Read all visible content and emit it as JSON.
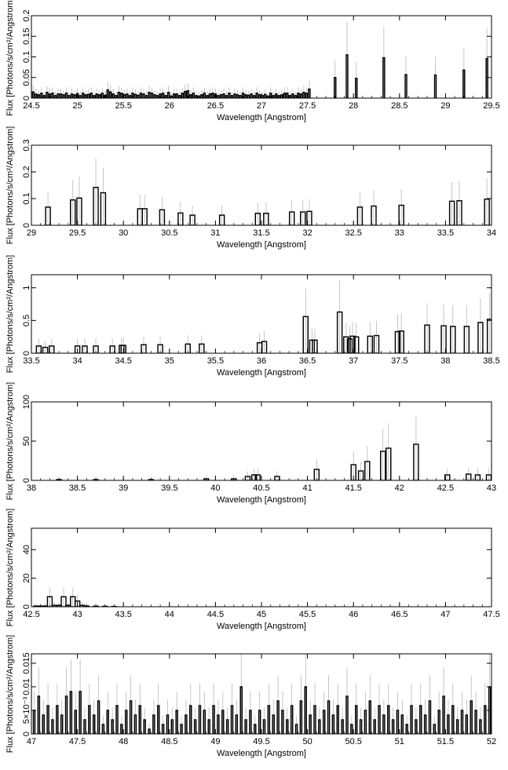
{
  "chart_data": [
    {
      "type": "line",
      "xlabel": "Wavelength [Angstrom]",
      "ylabel": "Flux [Photons/s/cm²/Angstrom]",
      "xlim": [
        24.5,
        29.5
      ],
      "ylim": [
        0,
        0.2
      ],
      "xticks": [
        "24.5",
        "25",
        "25.5",
        "26",
        "26.5",
        "27",
        "27.5",
        "28",
        "28.5",
        "29",
        "29.5"
      ],
      "yticks": [
        "0",
        "0.05",
        "0.1",
        "0.15",
        "0.2"
      ],
      "series": [
        {
          "x": [
            24.52,
            24.55,
            24.58,
            24.61,
            24.64,
            24.67,
            24.7,
            24.73,
            24.76,
            24.79,
            24.82,
            24.85,
            24.88,
            24.91,
            24.94,
            24.97,
            25.0,
            25.03,
            25.06,
            25.09,
            25.12,
            25.15,
            25.18,
            25.21,
            25.24,
            25.27,
            25.3,
            25.33,
            25.36,
            25.39,
            25.42,
            25.45,
            25.48,
            25.51,
            25.54,
            25.57,
            25.6,
            25.63,
            25.66,
            25.69,
            25.72,
            25.75,
            25.78,
            25.81,
            25.84,
            25.87,
            25.9,
            25.93,
            25.96,
            25.99,
            26.02,
            26.05,
            26.08,
            26.11,
            26.14,
            26.17,
            26.2,
            26.23,
            26.26,
            26.29,
            26.32,
            26.35,
            26.38,
            26.41,
            26.44,
            26.47,
            26.5,
            26.53,
            26.56,
            26.59,
            26.62,
            26.65,
            26.68,
            26.71,
            26.74,
            26.77,
            26.8,
            26.83,
            26.86,
            26.89,
            26.92,
            26.95,
            26.98,
            27.01,
            27.04,
            27.07,
            27.1,
            27.13,
            27.16,
            27.19,
            27.22,
            27.25,
            27.28,
            27.31,
            27.34,
            27.37,
            27.4,
            27.43,
            27.46,
            27.49,
            27.52,
            27.8,
            27.93,
            28.03,
            28.33,
            28.57,
            28.89,
            29.2,
            29.45
          ],
          "y": [
            0.015,
            0.01,
            0.008,
            0.012,
            0.006,
            0.014,
            0.01,
            0.012,
            0.006,
            0.01,
            0.01,
            0.008,
            0.012,
            0.006,
            0.01,
            0.008,
            0.011,
            0.006,
            0.012,
            0.008,
            0.009,
            0.012,
            0.006,
            0.01,
            0.008,
            0.012,
            0.007,
            0.02,
            0.015,
            0.01,
            0.006,
            0.014,
            0.012,
            0.008,
            0.01,
            0.006,
            0.012,
            0.009,
            0.007,
            0.012,
            0.01,
            0.006,
            0.014,
            0.012,
            0.008,
            0.006,
            0.01,
            0.012,
            0.006,
            0.014,
            0.005,
            0.01,
            0.01,
            0.006,
            0.012,
            0.016,
            0.018,
            0.008,
            0.012,
            0.006,
            0.005,
            0.008,
            0.012,
            0.006,
            0.01,
            0.012,
            0.01,
            0.006,
            0.008,
            0.01,
            0.006,
            0.012,
            0.006,
            0.01,
            0.008,
            0.006,
            0.012,
            0.008,
            0.007,
            0.01,
            0.006,
            0.012,
            0.008,
            0.006,
            0.009,
            0.005,
            0.012,
            0.006,
            0.01,
            0.006,
            0.008,
            0.012,
            0.012,
            0.006,
            0.01,
            0.006,
            0.012,
            0.01,
            0.014,
            0.012,
            0.022,
            0.05,
            0.105,
            0.048,
            0.098,
            0.057,
            0.056,
            0.068,
            0.096
          ]
        }
      ]
    },
    {
      "type": "line",
      "xlabel": "Wavelength [Angstrom]",
      "ylabel": "Flux [Photons/s/cm²/Angstrom]",
      "xlim": [
        29,
        34
      ],
      "ylim": [
        0,
        0.3
      ],
      "xticks": [
        "29",
        "29.5",
        "30",
        "30.5",
        "31",
        "31.5",
        "32",
        "32.5",
        "33",
        "33.5",
        "34"
      ],
      "yticks": [
        "0",
        "0.1",
        "0.2",
        "0.3"
      ],
      "series": [
        {
          "x": [
            29.18,
            29.45,
            29.52,
            29.7,
            29.78,
            30.18,
            30.23,
            30.42,
            30.62,
            30.75,
            31.07,
            31.46,
            31.55,
            31.83,
            31.95,
            32.02,
            32.57,
            32.72,
            33.02,
            33.57,
            33.65,
            33.95
          ],
          "y": [
            0.068,
            0.095,
            0.102,
            0.142,
            0.122,
            0.062,
            0.062,
            0.058,
            0.046,
            0.038,
            0.038,
            0.045,
            0.045,
            0.05,
            0.05,
            0.052,
            0.068,
            0.072,
            0.075,
            0.09,
            0.092,
            0.098
          ]
        }
      ]
    },
    {
      "type": "line",
      "xlabel": "Wavelength [Angstrom]",
      "ylabel": "Flux [Photons/s/cm²/Angstrom]",
      "xlim": [
        33.5,
        38.5
      ],
      "ylim": [
        0,
        1.2
      ],
      "xticks": [
        "33.5",
        "34",
        "34.5",
        "35",
        "35.5",
        "36",
        "36.5",
        "37",
        "37.5",
        "38",
        "38.5"
      ],
      "yticks": [
        "0",
        "0.5",
        "1"
      ],
      "series": [
        {
          "x": [
            33.58,
            33.65,
            33.72,
            34.0,
            34.08,
            34.2,
            34.38,
            34.48,
            34.5,
            34.72,
            34.9,
            35.2,
            35.35,
            35.98,
            36.03,
            36.48,
            36.55,
            36.58,
            36.85,
            36.92,
            36.96,
            36.99,
            37.03,
            37.18,
            37.25,
            37.48,
            37.52,
            37.8,
            37.98,
            38.08,
            38.23,
            38.38,
            38.48
          ],
          "y": [
            0.11,
            0.09,
            0.11,
            0.11,
            0.11,
            0.11,
            0.11,
            0.12,
            0.12,
            0.13,
            0.13,
            0.14,
            0.14,
            0.16,
            0.18,
            0.56,
            0.2,
            0.2,
            0.63,
            0.25,
            0.22,
            0.26,
            0.25,
            0.26,
            0.27,
            0.33,
            0.34,
            0.43,
            0.42,
            0.41,
            0.41,
            0.47,
            0.52
          ]
        }
      ]
    },
    {
      "type": "line",
      "xlabel": "Wavelength [Angstrom]",
      "ylabel": "Flux [Photons/s/cm²/Angstrom]",
      "xlim": [
        38,
        43
      ],
      "ylim": [
        0,
        100
      ],
      "xticks": [
        "38",
        "38.5",
        "39",
        "39.5",
        "40",
        "40.5",
        "41",
        "41.5",
        "42",
        "42.5",
        "43"
      ],
      "yticks": [
        "0",
        "50",
        "100"
      ],
      "series": [
        {
          "x": [
            38.3,
            38.7,
            39.3,
            39.9,
            40.2,
            40.35,
            40.42,
            40.46,
            40.67,
            41.1,
            41.5,
            41.58,
            41.65,
            41.82,
            41.88,
            42.18,
            42.52,
            42.75,
            42.85,
            42.97
          ],
          "y": [
            1,
            1,
            1,
            2,
            2,
            5,
            7,
            7,
            5,
            14,
            20,
            12,
            24,
            37,
            41,
            46,
            7,
            8,
            7,
            7
          ]
        }
      ]
    },
    {
      "type": "line",
      "xlabel": "Wavelength [Angstrom]",
      "ylabel": "Flux [Photons/s/cm²/Angstrom]",
      "xlim": [
        42.5,
        47.5
      ],
      "ylim": [
        0,
        55
      ],
      "xticks": [
        "42.5",
        "43",
        "43.5",
        "44",
        "44.5",
        "45",
        "45.5",
        "46",
        "46.5",
        "47",
        "47.5"
      ],
      "yticks": [
        "0",
        "20",
        "40"
      ],
      "series": [
        {
          "x": [
            42.55,
            42.6,
            42.65,
            42.7,
            42.75,
            42.8,
            42.85,
            42.9,
            42.95,
            43.0,
            43.05,
            43.1,
            43.2,
            43.3,
            43.4
          ],
          "y": [
            0.5,
            0.5,
            0.5,
            7,
            1,
            1,
            7,
            1,
            7,
            4,
            1,
            0.5,
            0.4,
            0.3,
            0.2
          ]
        }
      ]
    },
    {
      "type": "line",
      "xlabel": "Wavelength [Angstrom]",
      "ylabel": "Flux [Photons/s/cm²/Angstrom]",
      "xlim": [
        47,
        52
      ],
      "ylim": [
        0,
        0.017
      ],
      "xticks": [
        "47",
        "47.5",
        "48",
        "48.5",
        "49",
        "49.5",
        "50",
        "50.5",
        "51",
        "51.5",
        "52"
      ],
      "yticks": [
        "0",
        "5×10⁻³",
        "0.01",
        "0.015"
      ],
      "series": [
        {
          "x": [
            47.03,
            47.08,
            47.13,
            47.18,
            47.23,
            47.28,
            47.33,
            47.38,
            47.43,
            47.48,
            47.53,
            47.58,
            47.63,
            47.68,
            47.73,
            47.78,
            47.83,
            47.88,
            47.93,
            47.98,
            48.03,
            48.08,
            48.13,
            48.18,
            48.23,
            48.28,
            48.33,
            48.38,
            48.43,
            48.48,
            48.53,
            48.58,
            48.63,
            48.68,
            48.73,
            48.78,
            48.83,
            48.88,
            48.93,
            48.98,
            49.03,
            49.08,
            49.13,
            49.18,
            49.23,
            49.28,
            49.33,
            49.38,
            49.43,
            49.48,
            49.53,
            49.58,
            49.63,
            49.68,
            49.73,
            49.78,
            49.83,
            49.88,
            49.93,
            49.98,
            50.03,
            50.08,
            50.13,
            50.18,
            50.23,
            50.28,
            50.33,
            50.38,
            50.43,
            50.48,
            50.53,
            50.58,
            50.63,
            50.68,
            50.73,
            50.78,
            50.83,
            50.88,
            50.93,
            50.98,
            51.03,
            51.08,
            51.13,
            51.18,
            51.23,
            51.28,
            51.33,
            51.38,
            51.43,
            51.48,
            51.53,
            51.58,
            51.63,
            51.68,
            51.73,
            51.78,
            51.83,
            51.88,
            51.93,
            51.98
          ],
          "y": [
            0.005,
            0.008,
            0.004,
            0.006,
            0.003,
            0.006,
            0.004,
            0.008,
            0.009,
            0.005,
            0.009,
            0.003,
            0.006,
            0.004,
            0.007,
            0.002,
            0.005,
            0.003,
            0.006,
            0.002,
            0.005,
            0.007,
            0.004,
            0.006,
            0.003,
            0.001,
            0.004,
            0.006,
            0.002,
            0.004,
            0.003,
            0.005,
            0.002,
            0.004,
            0.006,
            0.003,
            0.006,
            0.005,
            0.003,
            0.006,
            0.004,
            0.005,
            0.003,
            0.006,
            0.004,
            0.01,
            0.003,
            0.005,
            0.002,
            0.005,
            0.003,
            0.006,
            0.004,
            0.007,
            0.005,
            0.003,
            0.006,
            0.002,
            0.007,
            0.01,
            0.004,
            0.006,
            0.003,
            0.005,
            0.007,
            0.004,
            0.006,
            0.003,
            0.008,
            0.002,
            0.006,
            0.003,
            0.005,
            0.007,
            0.003,
            0.006,
            0.004,
            0.006,
            0.003,
            0.005,
            0.004,
            0.002,
            0.006,
            0.003,
            0.006,
            0.004,
            0.007,
            0.002,
            0.005,
            0.008,
            0.004,
            0.006,
            0.003,
            0.005,
            0.004,
            0.007,
            0.005,
            0.003,
            0.006,
            0.01
          ]
        }
      ]
    }
  ]
}
